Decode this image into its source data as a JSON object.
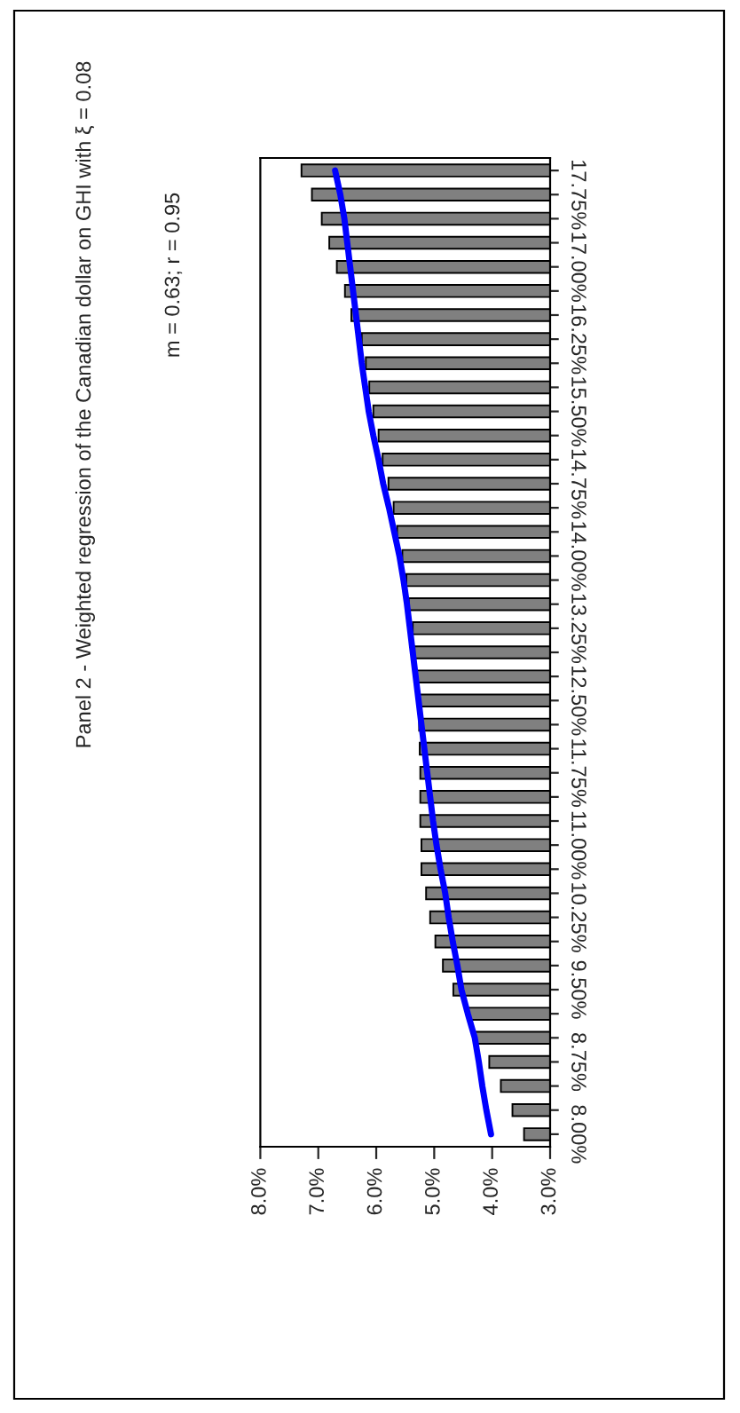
{
  "chart_data": {
    "type": "bar",
    "orientation": "horizontal",
    "title": "Panel 2 - Weighted regression of the Canadian dollar on GHI with ξ = 0.08",
    "subtitle": "m = 0.63; r = 0.95",
    "categories": [
      null,
      "17.75%",
      null,
      null,
      "17.00%",
      null,
      null,
      "16.25%",
      null,
      null,
      "15.50%",
      null,
      null,
      "14.75%",
      null,
      null,
      "14.00%",
      null,
      null,
      "13.25%",
      null,
      null,
      "12.50%",
      null,
      null,
      "11.75%",
      null,
      null,
      "11.00%",
      null,
      null,
      "10.25%",
      null,
      null,
      "9.50%",
      null,
      null,
      "8.75%",
      null,
      null,
      "8.00%"
    ],
    "series": [
      {
        "color": "#808080",
        "values": [
          7.29,
          7.11,
          6.94,
          6.81,
          6.68,
          6.54,
          6.43,
          6.25,
          6.18,
          6.12,
          6.05,
          5.96,
          5.89,
          5.79,
          5.7,
          5.64,
          5.55,
          5.48,
          5.44,
          5.37,
          5.34,
          5.31,
          5.27,
          5.26,
          5.25,
          5.24,
          5.24,
          5.24,
          5.22,
          5.22,
          5.14,
          5.07,
          4.98,
          4.85,
          4.67,
          4.41,
          4.29,
          4.05,
          3.85,
          3.65,
          3.45
        ]
      },
      {
        "type": "line",
        "color": "#0000ff",
        "values": [
          6.71,
          6.62,
          6.55,
          6.5,
          6.45,
          6.4,
          6.35,
          6.3,
          6.25,
          6.19,
          6.13,
          6.05,
          5.96,
          5.88,
          5.78,
          5.69,
          5.6,
          5.53,
          5.47,
          5.42,
          5.37,
          5.32,
          5.27,
          5.22,
          5.17,
          5.12,
          5.07,
          5.02,
          4.96,
          4.89,
          4.81,
          4.75,
          4.68,
          4.6,
          4.53,
          4.42,
          4.3,
          4.23,
          4.17,
          4.1,
          4.02
        ]
      }
    ],
    "xlim": [
      8,
      3
    ],
    "xticks": [
      {
        "value": 8,
        "label": "8.0%"
      },
      {
        "value": 7,
        "label": "7.0%"
      },
      {
        "value": 6,
        "label": "6.0%"
      },
      {
        "value": 5,
        "label": "5.0%"
      },
      {
        "value": 4,
        "label": "4.0%"
      },
      {
        "value": 3,
        "label": "3.0%"
      }
    ],
    "grid": false,
    "legend": false
  }
}
